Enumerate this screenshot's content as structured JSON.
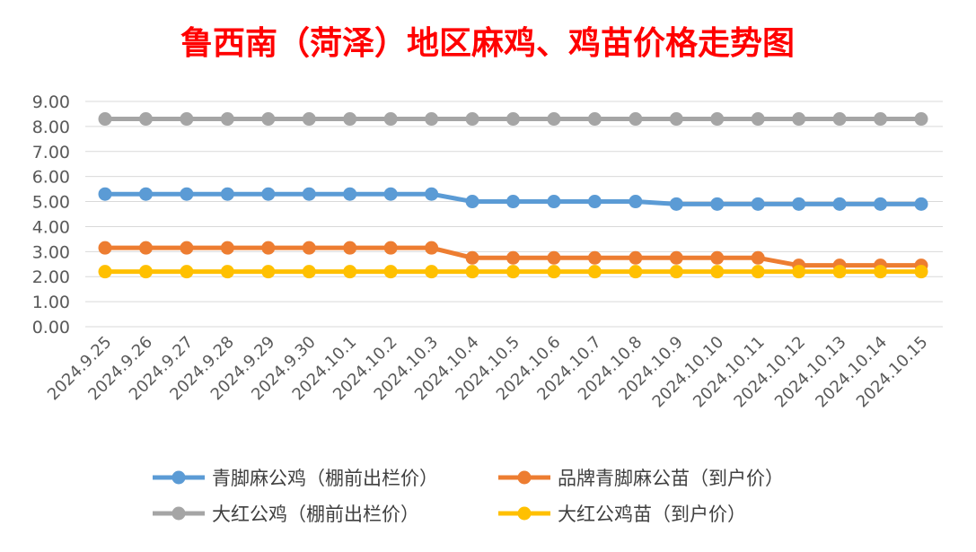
{
  "chart_data": {
    "type": "line",
    "title": "鲁西南（菏泽）地区麻鸡、鸡苗价格走势图",
    "xlabel": "",
    "ylabel": "",
    "ylim": [
      0,
      9
    ],
    "y_ticks": [
      "0.00",
      "1.00",
      "2.00",
      "3.00",
      "4.00",
      "5.00",
      "6.00",
      "7.00",
      "8.00",
      "9.00"
    ],
    "categories": [
      "2024.9.25",
      "2024.9.26",
      "2024.9.27",
      "2024.9.28",
      "2024.9.29",
      "2024.9.30",
      "2024.10.1",
      "2024.10.2",
      "2024.10.3",
      "2024.10.4",
      "2024.10.5",
      "2024.10.6",
      "2024.10.7",
      "2024.10.8",
      "2024.10.9",
      "2024.10.10",
      "2024.10.11",
      "2024.10.12",
      "2024.10.13",
      "2024.10.14",
      "2024.10.15"
    ],
    "grid": true,
    "legend_position": "bottom",
    "series": [
      {
        "name": "青脚麻公鸡（棚前出栏价）",
        "color": "#5b9bd5",
        "values": [
          5.3,
          5.3,
          5.3,
          5.3,
          5.3,
          5.3,
          5.3,
          5.3,
          5.3,
          5.0,
          5.0,
          5.0,
          5.0,
          5.0,
          4.9,
          4.9,
          4.9,
          4.9,
          4.9,
          4.9,
          4.9
        ]
      },
      {
        "name": "品牌青脚麻公苗（到户价）",
        "color": "#ed7d31",
        "values": [
          3.15,
          3.15,
          3.15,
          3.15,
          3.15,
          3.15,
          3.15,
          3.15,
          3.15,
          2.75,
          2.75,
          2.75,
          2.75,
          2.75,
          2.75,
          2.75,
          2.75,
          2.45,
          2.45,
          2.45,
          2.45
        ]
      },
      {
        "name": "大红公鸡（棚前出栏价）",
        "color": "#a5a5a5",
        "values": [
          8.3,
          8.3,
          8.3,
          8.3,
          8.3,
          8.3,
          8.3,
          8.3,
          8.3,
          8.3,
          8.3,
          8.3,
          8.3,
          8.3,
          8.3,
          8.3,
          8.3,
          8.3,
          8.3,
          8.3,
          8.3
        ]
      },
      {
        "name": "大红公鸡苗（到户价）",
        "color": "#ffc000",
        "values": [
          2.2,
          2.2,
          2.2,
          2.2,
          2.2,
          2.2,
          2.2,
          2.2,
          2.2,
          2.2,
          2.2,
          2.2,
          2.2,
          2.2,
          2.2,
          2.2,
          2.2,
          2.2,
          2.2,
          2.2,
          2.2
        ]
      }
    ]
  }
}
